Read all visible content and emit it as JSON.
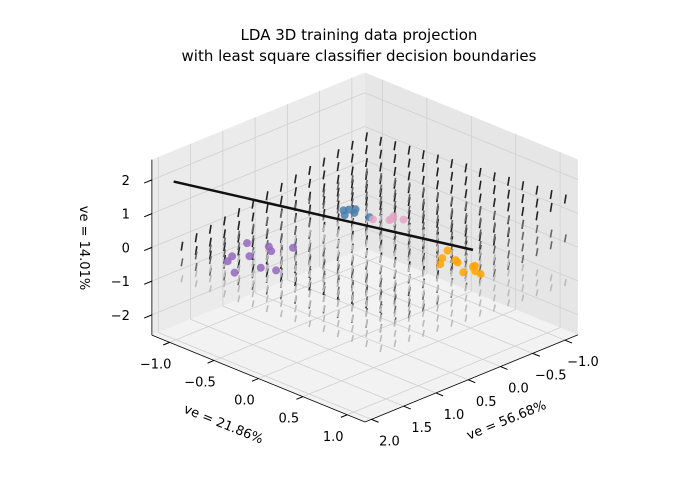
{
  "chart_data": {
    "type": "scatter3d",
    "title": [
      "LDA 3D training data projection",
      "with least square classifier decision boundaries"
    ],
    "xlabel": "ve = 56.68%",
    "ylabel": "ve = 21.86%",
    "zlabel": "ve = 14.01%",
    "xlim": [
      -1.2,
      2.1
    ],
    "ylim": [
      -1.2,
      1.2
    ],
    "zlim": [
      -2.6,
      2.6
    ],
    "xticks": [
      {
        "value": -1,
        "label": "−1.0"
      },
      {
        "value": -0.5,
        "label": "−0.5"
      },
      {
        "value": 0,
        "label": "0.0"
      },
      0.5,
      {
        "value": 1,
        "label": "1.0"
      },
      1.5,
      {
        "value": 2,
        "label": "2.0"
      }
    ],
    "yticks": [
      {
        "value": -1,
        "label": "−1.0"
      },
      {
        "value": -0.5,
        "label": "−0.5"
      },
      {
        "value": 0,
        "label": "0.0"
      },
      0.5,
      {
        "value": 1,
        "label": "1.0"
      }
    ],
    "zticks": [
      {
        "value": -2,
        "label": "−2"
      },
      {
        "value": -1,
        "label": "−1"
      },
      0,
      1,
      2
    ],
    "series": [
      {
        "color": "#9467bd",
        "x": [
          1.0,
          1.2,
          0.8,
          1.1,
          0.9,
          1.3,
          0.7,
          1.0,
          0.6,
          1.2
        ],
        "y": [
          -0.9,
          -1.0,
          -0.8,
          -0.7,
          -1.0,
          -0.85,
          -0.9,
          -0.6,
          -0.7,
          -0.95
        ],
        "z": [
          -0.8,
          -0.9,
          -0.7,
          -0.85,
          -0.6,
          -1.0,
          -0.75,
          -0.9,
          -0.65,
          -0.7
        ]
      },
      {
        "color": "#ffa500",
        "x": [
          -0.3,
          -0.4,
          -0.2,
          -0.5,
          -0.3,
          -0.1,
          -0.35,
          -0.45,
          -0.25,
          -0.2
        ],
        "y": [
          0.5,
          0.6,
          0.4,
          0.55,
          0.7,
          0.45,
          0.35,
          0.65,
          0.6,
          0.55
        ],
        "z": [
          -0.5,
          -0.6,
          -0.4,
          -0.7,
          -0.55,
          -0.45,
          -0.35,
          -0.8,
          -0.65,
          -0.3
        ]
      },
      {
        "color": "#4a7fab",
        "x": [
          0.2,
          0.3,
          0.1,
          0.25,
          0.15,
          0.35
        ],
        "y": [
          -0.3,
          -0.35,
          -0.2,
          -0.25,
          -0.4,
          -0.3
        ],
        "z": [
          0.5,
          0.6,
          0.4,
          0.7,
          0.45,
          0.55
        ]
      },
      {
        "color": "#e3a6c4",
        "x": [
          -0.1,
          0.0,
          -0.2,
          -0.15,
          0.05
        ],
        "y": [
          -0.1,
          -0.05,
          -0.15,
          0.0,
          -0.2
        ],
        "z": [
          0.3,
          0.4,
          0.25,
          0.35,
          0.3
        ]
      }
    ]
  }
}
